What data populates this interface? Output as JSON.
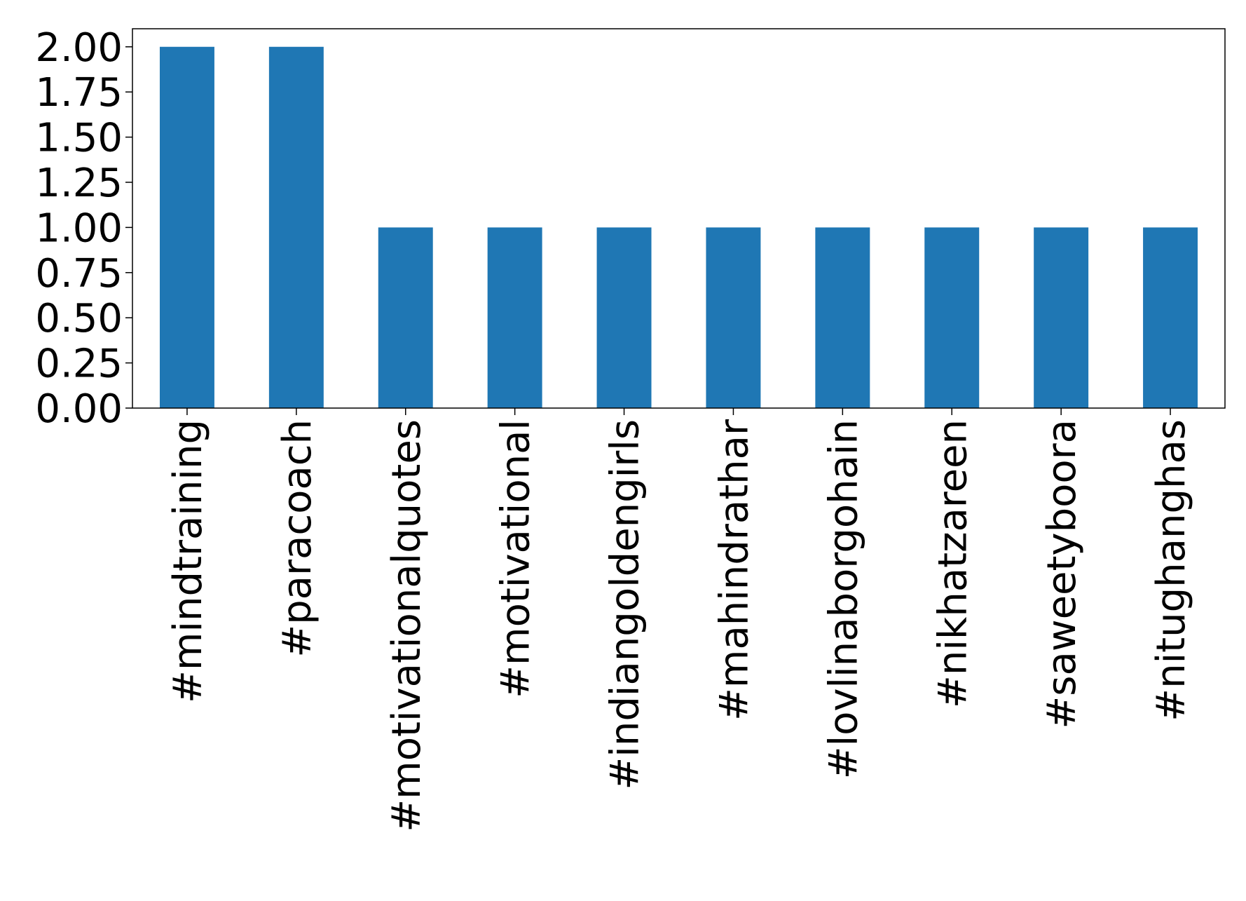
{
  "chart_data": {
    "type": "bar",
    "categories": [
      "#mindtraining",
      "#paracoach",
      "#motivationalquotes",
      "#motivational",
      "#indiangoldengirls",
      "#mahindrathar",
      "#lovlinaborgohain",
      "#nikhatzareen",
      "#saweetyboora",
      "#nitughanghas"
    ],
    "values": [
      2,
      2,
      1,
      1,
      1,
      1,
      1,
      1,
      1,
      1
    ],
    "color": "#1f77b4",
    "ylim": [
      0,
      2.1
    ],
    "yticks": [
      {
        "value": 0,
        "label": "0.00"
      },
      {
        "value": 0.25,
        "label": "0.25"
      },
      {
        "value": 0.5,
        "label": "0.50"
      },
      {
        "value": 0.75,
        "label": "0.75"
      },
      {
        "value": 1,
        "label": "1.00"
      },
      {
        "value": 1.25,
        "label": "1.25"
      },
      {
        "value": 1.5,
        "label": "1.50"
      },
      {
        "value": 1.75,
        "label": "1.75"
      },
      {
        "value": 2,
        "label": "2.00"
      }
    ],
    "grid": false
  }
}
